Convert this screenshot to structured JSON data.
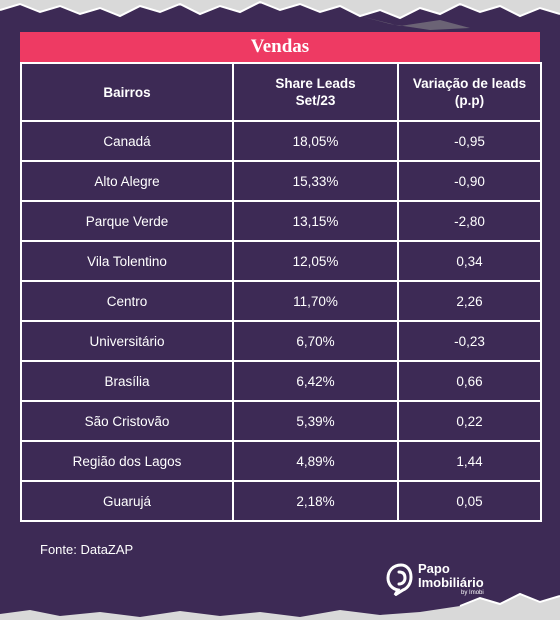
{
  "table": {
    "title": "Vendas",
    "headers": [
      "Bairros",
      "Share Leads\nSet/23",
      "Variação de leads\n(p.p)"
    ],
    "rows": [
      [
        "Canadá",
        "18,05%",
        "-0,95"
      ],
      [
        "Alto Alegre",
        "15,33%",
        "-0,90"
      ],
      [
        "Parque Verde",
        "13,15%",
        "-2,80"
      ],
      [
        "Vila Tolentino",
        "12,05%",
        "0,34"
      ],
      [
        "Centro",
        "11,70%",
        "2,26"
      ],
      [
        "Universitário",
        "6,70%",
        "-0,23"
      ],
      [
        "Brasília",
        "6,42%",
        "0,66"
      ],
      [
        "São Cristovão",
        "5,39%",
        "0,22"
      ],
      [
        "Região dos Lagos",
        "4,89%",
        "1,44"
      ],
      [
        "Guarujá",
        "2,18%",
        "0,05"
      ]
    ]
  },
  "footer": {
    "source": "Fonte: DataZAP"
  },
  "logo": {
    "line1": "Papo",
    "line2": "Imobiliário",
    "sub": "by Imobi"
  },
  "colors": {
    "background": "#3d2a55",
    "title_bar": "#ee3a63",
    "text": "#ffffff",
    "paper": "#d9d9d9"
  }
}
